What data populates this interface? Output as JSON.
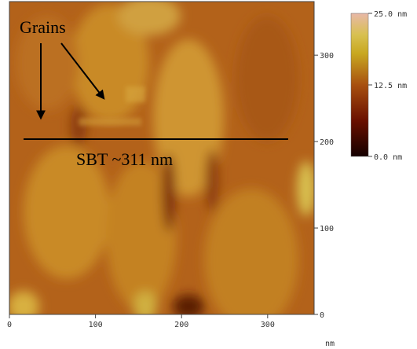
{
  "image": {
    "annotations": {
      "label": "Grains",
      "scan_line": "SBT ~311 nm"
    }
  },
  "axes": {
    "x": {
      "lim": [
        0,
        354
      ],
      "ticks": [
        0,
        100,
        200,
        300
      ],
      "unit": "nm"
    },
    "y": {
      "lim": [
        0,
        362
      ],
      "ticks": [
        0,
        100,
        200,
        300
      ]
    }
  },
  "colorbar": {
    "lim": [
      0,
      25
    ],
    "ticks": [
      {
        "value": 25,
        "label": "25.0 nm"
      },
      {
        "value": 12.5,
        "label": "12.5 nm"
      },
      {
        "value": 0,
        "label": "0.0 nm"
      }
    ]
  }
}
